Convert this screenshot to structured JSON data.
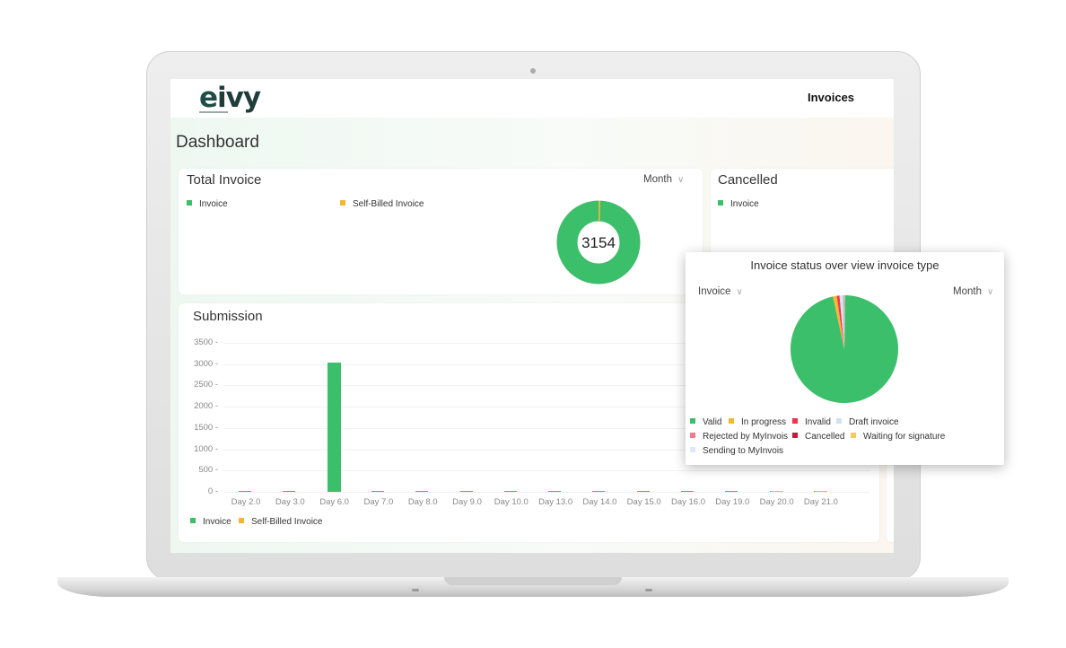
{
  "header": {
    "nav_link": "Invoices"
  },
  "page": {
    "title": "Dashboard"
  },
  "total_invoice": {
    "title": "Total Invoice",
    "period": "Month",
    "legend": [
      {
        "label": "Invoice",
        "color": "#3bbf6a"
      },
      {
        "label": "Self-Billed Invoice",
        "color": "#f5b731"
      }
    ],
    "center_value": "3154"
  },
  "cancelled": {
    "title": "Cancelled",
    "legend": [
      {
        "label": "Invoice",
        "color": "#3bbf6a"
      }
    ]
  },
  "submission": {
    "title": "Submission",
    "legend": [
      {
        "label": "Invoice",
        "color": "#3bbf6a"
      },
      {
        "label": "Self-Billed Invoice",
        "color": "#f5b731"
      }
    ]
  },
  "status_popup": {
    "title": "Invoice status over view invoice type",
    "type_filter": "Invoice",
    "period": "Month",
    "legend": [
      {
        "label": "Valid",
        "color": "#3bbf6a"
      },
      {
        "label": "In progress",
        "color": "#f5b731"
      },
      {
        "label": "Invalid",
        "color": "#f0344b"
      },
      {
        "label": "Draft invoice",
        "color": "#cfe2f3"
      },
      {
        "label": "Rejected by MyInvois",
        "color": "#f27a93"
      },
      {
        "label": "Cancelled",
        "color": "#d0143a"
      },
      {
        "label": "Waiting for signature",
        "color": "#f7c95b"
      },
      {
        "label": "Sending to MyInvois",
        "color": "#dde9f5"
      }
    ]
  },
  "chart_data": [
    {
      "type": "pie",
      "labels": [
        "Invoice",
        "Self-Billed Invoice"
      ],
      "values": [
        3140,
        14
      ],
      "colors": [
        "#3bbf6a",
        "#f5b731"
      ],
      "center_label": "3154"
    },
    {
      "type": "bar",
      "title": "Submission",
      "categories": [
        "Day 2.0",
        "Day 3.0",
        "Day 6.0",
        "Day 7.0",
        "Day 8.0",
        "Day 9.0",
        "Day 10.0",
        "Day 13.0",
        "Day 14.0",
        "Day 15.0",
        "Day 16.0",
        "Day 19.0",
        "Day 20.0",
        "Day 21.0"
      ],
      "y_ticks": [
        "0",
        "500",
        "1000",
        "1500",
        "2000",
        "2500",
        "3000",
        "3500"
      ],
      "ylim": [
        0,
        3500
      ],
      "series": [
        {
          "name": "Invoice",
          "color": "#3bbf6a",
          "values": [
            5,
            3,
            3040,
            4,
            2,
            3,
            2,
            3,
            2,
            3,
            6,
            3,
            20,
            18
          ]
        },
        {
          "name": "Self-Billed Invoice",
          "color": "#f5b731",
          "values": [
            0,
            0,
            0,
            0,
            0,
            0,
            0,
            0,
            0,
            0,
            0,
            0,
            1,
            1
          ]
        }
      ]
    },
    {
      "type": "pie",
      "labels": [
        "Valid",
        "In progress",
        "Invalid",
        "Draft invoice",
        "Rejected by MyInvois",
        "Cancelled",
        "Waiting for signature",
        "Sending to MyInvois"
      ],
      "values": [
        96.4,
        1.2,
        0.8,
        1.2,
        0.1,
        0.1,
        0.1,
        0.1
      ],
      "colors": [
        "#3bbf6a",
        "#f5b731",
        "#f0344b",
        "#cfe2f3",
        "#f27a93",
        "#d0143a",
        "#f7c95b",
        "#dde9f5"
      ]
    }
  ]
}
